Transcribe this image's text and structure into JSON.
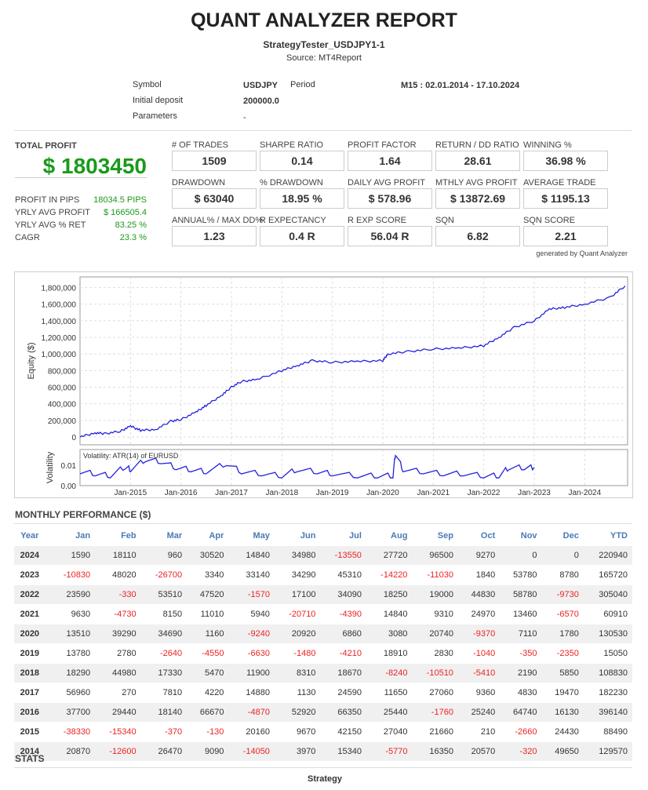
{
  "header": {
    "title": "QUANT ANALYZER REPORT",
    "strategy": "StrategyTester_USDJPY1-1",
    "source": "Source: MT4Report"
  },
  "info": {
    "symbol_label": "Symbol",
    "symbol": "USDJPY",
    "period_label": "Period",
    "period": "M15 : 02.01.2014 - 17.10.2024",
    "deposit_label": "Initial deposit",
    "deposit": "200000.0",
    "params_label": "Parameters",
    "params": "-"
  },
  "total": {
    "label": "TOTAL PROFIT",
    "value": "$ 1803450",
    "rows": [
      {
        "label": "PROFIT IN PIPS",
        "value": "18034.5 PIPS"
      },
      {
        "label": "YRLY AVG PROFIT",
        "value": "$ 166505.4"
      },
      {
        "label": "YRLY AVG % RET",
        "value": "83.25 %"
      },
      {
        "label": "CAGR",
        "value": "23.3 %"
      }
    ]
  },
  "metrics": [
    {
      "label": "# OF TRADES",
      "value": "1509"
    },
    {
      "label": "SHARPE RATIO",
      "value": "0.14"
    },
    {
      "label": "PROFIT FACTOR",
      "value": "1.64"
    },
    {
      "label": "RETURN / DD RATIO",
      "value": "28.61"
    },
    {
      "label": "WINNING %",
      "value": "36.98 %"
    },
    {
      "label": "DRAWDOWN",
      "value": "$ 63040"
    },
    {
      "label": "% DRAWDOWN",
      "value": "18.95 %"
    },
    {
      "label": "DAILY AVG PROFIT",
      "value": "$ 578.96"
    },
    {
      "label": "MTHLY AVG PROFIT",
      "value": "$ 13872.69"
    },
    {
      "label": "AVERAGE TRADE",
      "value": "$ 1195.13"
    },
    {
      "label": "ANNUAL% / MAX DD%",
      "value": "1.23"
    },
    {
      "label": "R EXPECTANCY",
      "value": "0.4 R"
    },
    {
      "label": "R EXP SCORE",
      "value": "56.04 R"
    },
    {
      "label": "SQN",
      "value": "6.82"
    },
    {
      "label": "SQN SCORE",
      "value": "2.21"
    }
  ],
  "generated": "generated by Quant Analyzer",
  "chart_data": {
    "type": "line",
    "ylabel": "Equity ($)",
    "ylim": [
      0,
      1900000
    ],
    "yticks": [
      "0",
      "200,000",
      "400,000",
      "600,000",
      "800,000",
      "1,000,000",
      "1,200,000",
      "1,400,000",
      "1,600,000",
      "1,800,000"
    ],
    "xticks": [
      "Jan-2015",
      "Jan-2016",
      "Jan-2017",
      "Jan-2018",
      "Jan-2019",
      "Jan-2020",
      "Jan-2021",
      "Jan-2022",
      "Jan-2023",
      "Jan-2024"
    ],
    "x": [
      2014.0,
      2014.3,
      2014.5,
      2014.8,
      2015.0,
      2015.2,
      2015.5,
      2015.8,
      2016.0,
      2016.3,
      2016.5,
      2016.8,
      2017.0,
      2017.2,
      2017.5,
      2018.0,
      2018.3,
      2018.6,
      2019.0,
      2019.5,
      2020.0,
      2020.1,
      2020.5,
      2021.0,
      2021.5,
      2022.0,
      2022.3,
      2022.6,
      2023.0,
      2023.3,
      2023.6,
      2024.0,
      2024.5,
      2024.8
    ],
    "y": [
      0,
      50000,
      40000,
      70000,
      130000,
      80000,
      90000,
      190000,
      210000,
      300000,
      380000,
      500000,
      600000,
      670000,
      690000,
      800000,
      860000,
      920000,
      900000,
      910000,
      920000,
      1000000,
      1030000,
      1060000,
      1070000,
      1100000,
      1200000,
      1320000,
      1400000,
      1540000,
      1560000,
      1600000,
      1680000,
      1820000
    ],
    "volatility": {
      "ylabel": "Volatility",
      "legend": "Volatility: ATR(14) of EURUSD",
      "yticks": [
        "0.00",
        "0.01"
      ],
      "x": [
        2014.0,
        2014.3,
        2014.6,
        2014.9,
        2015.0,
        2015.3,
        2015.6,
        2015.9,
        2016.2,
        2016.5,
        2016.9,
        2017.2,
        2017.6,
        2018.0,
        2018.3,
        2018.7,
        2019.0,
        2019.5,
        2019.9,
        2020.2,
        2020.25,
        2020.4,
        2020.8,
        2021.2,
        2021.6,
        2022.0,
        2022.3,
        2022.5,
        2022.8,
        2023.0
      ],
      "y": [
        0.007,
        0.006,
        0.005,
        0.0095,
        0.008,
        0.013,
        0.012,
        0.009,
        0.008,
        0.007,
        0.011,
        0.007,
        0.006,
        0.005,
        0.008,
        0.007,
        0.006,
        0.005,
        0.005,
        0.005,
        0.016,
        0.008,
        0.007,
        0.006,
        0.006,
        0.005,
        0.005,
        0.009,
        0.009,
        0.009
      ]
    }
  },
  "monthly": {
    "title": "MONTHLY PERFORMANCE ($)",
    "headers": [
      "Year",
      "Jan",
      "Feb",
      "Mar",
      "Apr",
      "May",
      "Jun",
      "Jul",
      "Aug",
      "Sep",
      "Oct",
      "Nov",
      "Dec",
      "YTD"
    ],
    "rows": [
      [
        "2024",
        "1590",
        "18110",
        "960",
        "30520",
        "14840",
        "34980",
        "-13550",
        "27720",
        "96500",
        "9270",
        "0",
        "0",
        "220940"
      ],
      [
        "2023",
        "-10830",
        "48020",
        "-26700",
        "3340",
        "33140",
        "34290",
        "45310",
        "-14220",
        "-11030",
        "1840",
        "53780",
        "8780",
        "165720"
      ],
      [
        "2022",
        "23590",
        "-330",
        "53510",
        "47520",
        "-1570",
        "17100",
        "34090",
        "18250",
        "19000",
        "44830",
        "58780",
        "-9730",
        "305040"
      ],
      [
        "2021",
        "9630",
        "-4730",
        "8150",
        "11010",
        "5940",
        "-20710",
        "-4390",
        "14840",
        "9310",
        "24970",
        "13460",
        "-6570",
        "60910"
      ],
      [
        "2020",
        "13510",
        "39290",
        "34690",
        "1160",
        "-9240",
        "20920",
        "6860",
        "3080",
        "20740",
        "-9370",
        "7110",
        "1780",
        "130530"
      ],
      [
        "2019",
        "13780",
        "2780",
        "-2640",
        "-4550",
        "-6630",
        "-1480",
        "-4210",
        "18910",
        "2830",
        "-1040",
        "-350",
        "-2350",
        "15050"
      ],
      [
        "2018",
        "18290",
        "44980",
        "17330",
        "5470",
        "11900",
        "8310",
        "18670",
        "-8240",
        "-10510",
        "-5410",
        "2190",
        "5850",
        "108830"
      ],
      [
        "2017",
        "56960",
        "270",
        "7810",
        "4220",
        "14880",
        "1130",
        "24590",
        "11650",
        "27060",
        "9360",
        "4830",
        "19470",
        "182230"
      ],
      [
        "2016",
        "37700",
        "29440",
        "18140",
        "66670",
        "-4870",
        "52920",
        "66350",
        "25440",
        "-1760",
        "25240",
        "64740",
        "16130",
        "396140"
      ],
      [
        "2015",
        "-38330",
        "-15340",
        "-370",
        "-130",
        "20160",
        "9670",
        "42150",
        "27040",
        "21660",
        "210",
        "-2660",
        "24430",
        "88490"
      ],
      [
        "2014",
        "20870",
        "-12600",
        "26470",
        "9090",
        "-14050",
        "3970",
        "15340",
        "-5770",
        "16350",
        "20570",
        "-320",
        "49650",
        "129570"
      ]
    ]
  },
  "stats": {
    "title": "STATS",
    "strategy_label": "Strategy"
  }
}
